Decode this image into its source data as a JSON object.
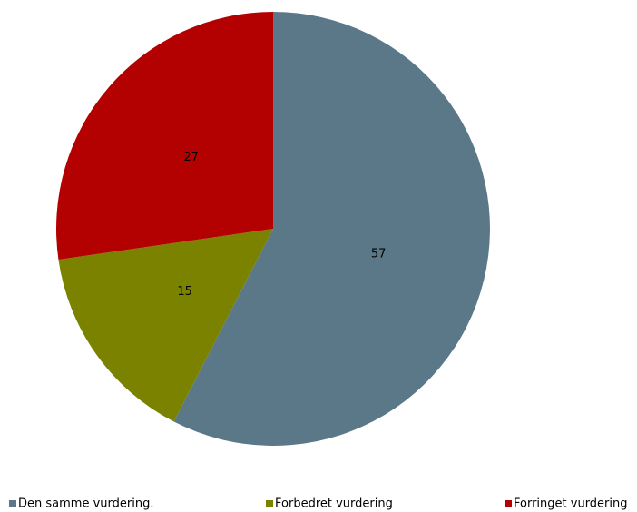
{
  "chart_data": {
    "type": "pie",
    "categories": [
      "Den samme vurdering.",
      "Forbedret vurdering",
      "Forringet vurdering"
    ],
    "values": [
      57,
      15,
      27
    ],
    "colors": [
      "#5b7889",
      "#7a8200",
      "#b30000"
    ],
    "legend": "bottom"
  }
}
